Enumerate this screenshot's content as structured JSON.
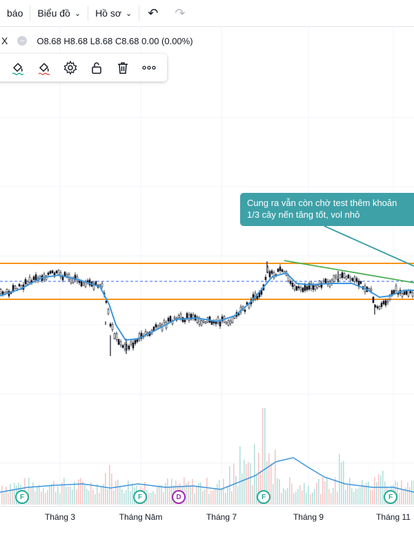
{
  "topbar": {
    "cut_label": "báo",
    "chart_menu": "Biểu đồ",
    "profile_menu": "Hồ sơ",
    "undo_icon": "undo-icon",
    "redo_icon": "redo-icon"
  },
  "legend": {
    "close": "X",
    "ohlc": "O8.68 H8.68 L8.68 C8.68 0.00 (0.00%)"
  },
  "drawing_toolbar": {
    "tools": [
      "bucket-line-icon",
      "bucket-fill-icon",
      "gear-icon",
      "unlock-icon",
      "trash-icon",
      "more-icon"
    ]
  },
  "annotation": {
    "line1": "Cung ra vẫn còn chờ test thêm khoản",
    "line2": "1/3 cây nến tăng tốt, vol nhỏ"
  },
  "xaxis_labels": [
    "Tháng 3",
    "Tháng Năm",
    "Tháng 7",
    "Tháng 9",
    "Tháng 11"
  ],
  "events": [
    "F",
    "F",
    "D",
    "F",
    "F"
  ],
  "colors": {
    "support_resistance": "#f7931a",
    "trendline": "#4caf50",
    "ma": "#3a95dc",
    "dashed_level": "#2962ff",
    "callout": "#3ea1a8",
    "vol_up": "#f7c5c5",
    "vol_down": "#b2dfdb"
  },
  "chart_data": {
    "type": "candlestick",
    "note_levels": {
      "resistance": "upper orange line",
      "support": "lower orange line"
    },
    "close_series": [
      8.5,
      8.52,
      8.6,
      8.7,
      8.68,
      8.62,
      8.55,
      8.5,
      8.45,
      8.4,
      7.5,
      7.2,
      7.0,
      7.15,
      7.3,
      7.5,
      7.7,
      7.8,
      7.85,
      7.75,
      7.8,
      7.9,
      8.0,
      8.2,
      8.4,
      8.9,
      9.0,
      8.6,
      8.65,
      8.7,
      8.75,
      8.55,
      8.3,
      8.45,
      8.5
    ]
  }
}
